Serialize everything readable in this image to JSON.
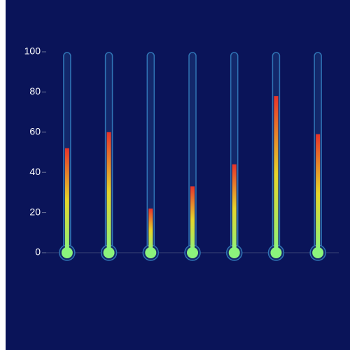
{
  "chart_data": {
    "type": "thermometer",
    "values": [
      52,
      60,
      22,
      33,
      44,
      78,
      59
    ],
    "colors": [
      "#8cf47c",
      "#e6d62a",
      "#e8332a"
    ],
    "ylim": [
      0,
      100
    ],
    "yticks": [
      0,
      20,
      40,
      60,
      80,
      100
    ],
    "grid": false
  }
}
